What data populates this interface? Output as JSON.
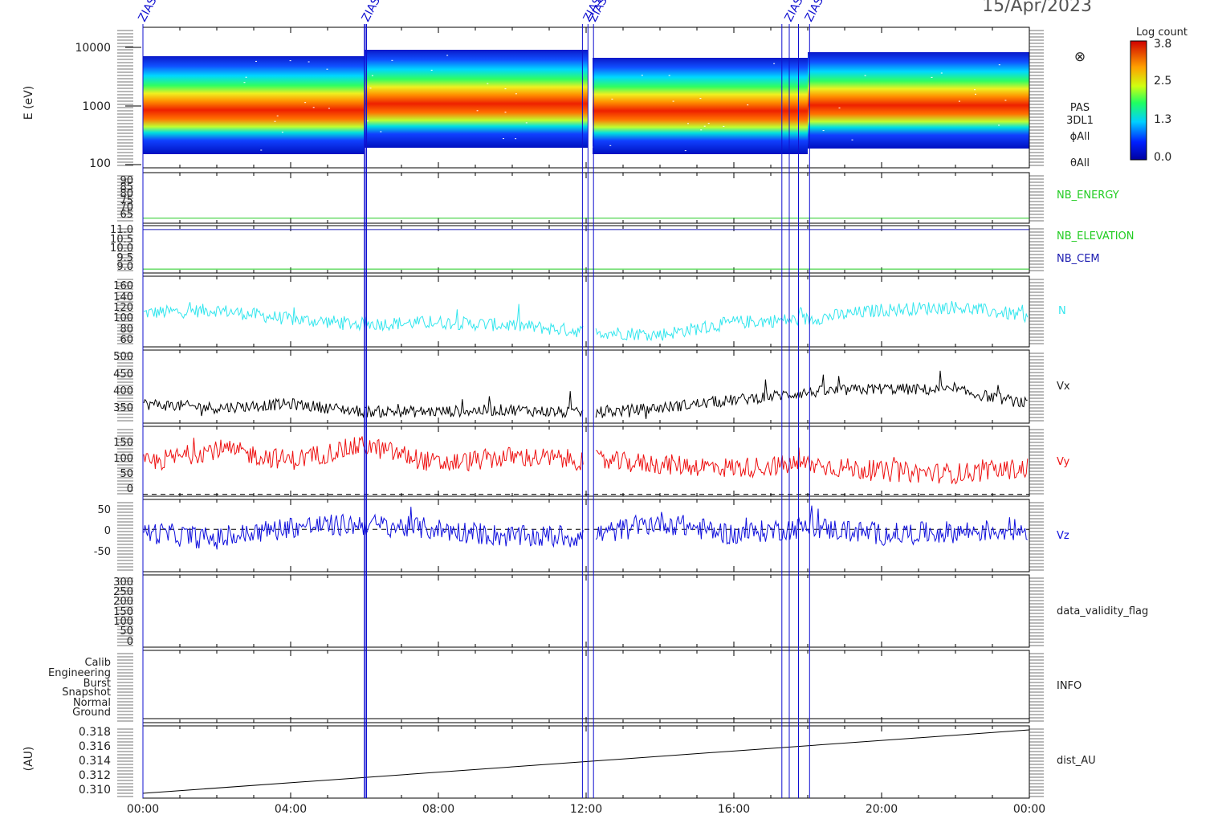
{
  "header": {
    "date": "15/Apr/2023"
  },
  "colorbar": {
    "title": "Log count",
    "ticks": [
      "3.8",
      "2.5",
      "1.3",
      "0.0"
    ]
  },
  "spectrogram_labels": {
    "ylabel": "E (eV)",
    "yticks": [
      "10000",
      "1000",
      "100"
    ],
    "symbol": "⊗",
    "instrument": "PAS",
    "product": "3DL1",
    "phi": "ϕAll",
    "theta": "θAll"
  },
  "event_markers": {
    "label": "ZIAS",
    "times_hours": [
      0.0,
      6.0,
      6.05,
      11.9,
      12.05,
      12.2,
      17.3,
      17.5,
      17.75,
      18.05
    ],
    "color": "#1010d0"
  },
  "x_axis": {
    "ticks": [
      "00:00",
      "04:00",
      "08:00",
      "12:00",
      "16:00",
      "20:00",
      "00:00"
    ],
    "range_hours": [
      0,
      24
    ]
  },
  "panels": {
    "nb_energy": {
      "yticks": [
        "90",
        "85",
        "80",
        "75",
        "70",
        "65"
      ],
      "label": "NB_ENERGY",
      "label_color": "#22cc22"
    },
    "nb_elev": {
      "yticks": [
        "11.0",
        "10.5",
        "10.0",
        "9.5",
        "9.0"
      ],
      "label1": "NB_ELEVATION",
      "label1_color": "#22cc22",
      "label2": "NB_CEM",
      "label2_color": "#1a1ab0"
    },
    "n": {
      "yticks": [
        "160",
        "140",
        "120",
        "100",
        "80",
        "60"
      ],
      "label": "N",
      "color": "#33e6ee"
    },
    "vx": {
      "yticks": [
        "500",
        "450",
        "400",
        "350"
      ],
      "label": "Vx",
      "color": "#000000"
    },
    "vy": {
      "yticks": [
        "150",
        "100",
        "50",
        "0"
      ],
      "label": "Vy",
      "color": "#ee1111"
    },
    "vz": {
      "yticks": [
        "50",
        "0",
        "-50"
      ],
      "label": "Vz",
      "color": "#1010dd"
    },
    "validity": {
      "yticks": [
        "300",
        "250",
        "200",
        "150",
        "100",
        "50",
        "0"
      ],
      "label": "data_validity_flag"
    },
    "info": {
      "yticks": [
        "Calib",
        "Engineering",
        "Burst",
        "Snapshot",
        "Normal",
        "Ground"
      ],
      "label": "INFO"
    },
    "dist": {
      "yticks": [
        "0.318",
        "0.316",
        "0.314",
        "0.312",
        "0.310"
      ],
      "ylabel": "(AU)",
      "label": "dist_AU"
    }
  },
  "chart_data": [
    {
      "type": "heatmap",
      "ylabel": "E (eV)",
      "y_scale": "log",
      "ylim": [
        100,
        20000
      ],
      "xlim_hours": [
        0,
        24
      ],
      "colorbar_range": [
        0.0,
        3.8
      ],
      "colorbar_title": "Log count"
    },
    {
      "type": "line",
      "name": "NB_ENERGY",
      "ylim": [
        62,
        92
      ],
      "x": [
        0,
        24
      ],
      "y": [
        65,
        65
      ]
    },
    {
      "type": "line",
      "series": [
        {
          "name": "NB_ELEVATION",
          "x": [
            0,
            24
          ],
          "y": [
            9.0,
            9.0
          ]
        },
        {
          "name": "NB_CEM",
          "x": [
            0,
            24
          ],
          "y": [
            11.0,
            11.0
          ]
        }
      ],
      "ylim": [
        8.8,
        11.2
      ]
    },
    {
      "type": "line",
      "name": "N",
      "ylim": [
        55,
        170
      ],
      "x": [
        0,
        2,
        4,
        6,
        8,
        10,
        12,
        14,
        16,
        18,
        20,
        22,
        24
      ],
      "y": [
        110,
        115,
        100,
        92,
        95,
        90,
        80,
        75,
        95,
        100,
        115,
        120,
        105
      ]
    },
    {
      "type": "line",
      "name": "Vx",
      "ylim": [
        320,
        510
      ],
      "x": [
        0,
        2,
        4,
        6,
        8,
        10,
        12,
        14,
        16,
        18,
        20,
        22,
        24
      ],
      "y": [
        370,
        360,
        370,
        350,
        350,
        355,
        345,
        360,
        380,
        400,
        410,
        405,
        370
      ]
    },
    {
      "type": "line",
      "name": "Vy",
      "ylim": [
        -5,
        180
      ],
      "x": [
        0,
        2,
        4,
        6,
        8,
        10,
        12,
        14,
        16,
        18,
        20,
        22,
        24
      ],
      "y": [
        80,
        120,
        90,
        130,
        80,
        100,
        90,
        80,
        70,
        80,
        60,
        55,
        70
      ]
    },
    {
      "type": "line",
      "name": "Vz",
      "ylim": [
        -85,
        60
      ],
      "x": [
        0,
        2,
        4,
        6,
        8,
        10,
        12,
        14,
        16,
        18,
        20,
        22,
        24
      ],
      "y": [
        -5,
        -20,
        5,
        10,
        0,
        -15,
        -15,
        15,
        -10,
        5,
        -10,
        -5,
        0
      ]
    },
    {
      "type": "line",
      "name": "data_validity_flag",
      "ylim": [
        -10,
        310
      ],
      "x": [],
      "y": []
    },
    {
      "type": "line",
      "name": "INFO",
      "categories": [
        "Calib",
        "Engineering",
        "Burst",
        "Snapshot",
        "Normal",
        "Ground"
      ],
      "x": [
        0,
        24
      ],
      "y": [
        "Ground",
        "Ground"
      ]
    },
    {
      "type": "line",
      "name": "dist_AU",
      "ylim": [
        0.3095,
        0.3185
      ],
      "x": [
        0,
        24
      ],
      "y": [
        0.3101,
        0.318
      ]
    }
  ]
}
